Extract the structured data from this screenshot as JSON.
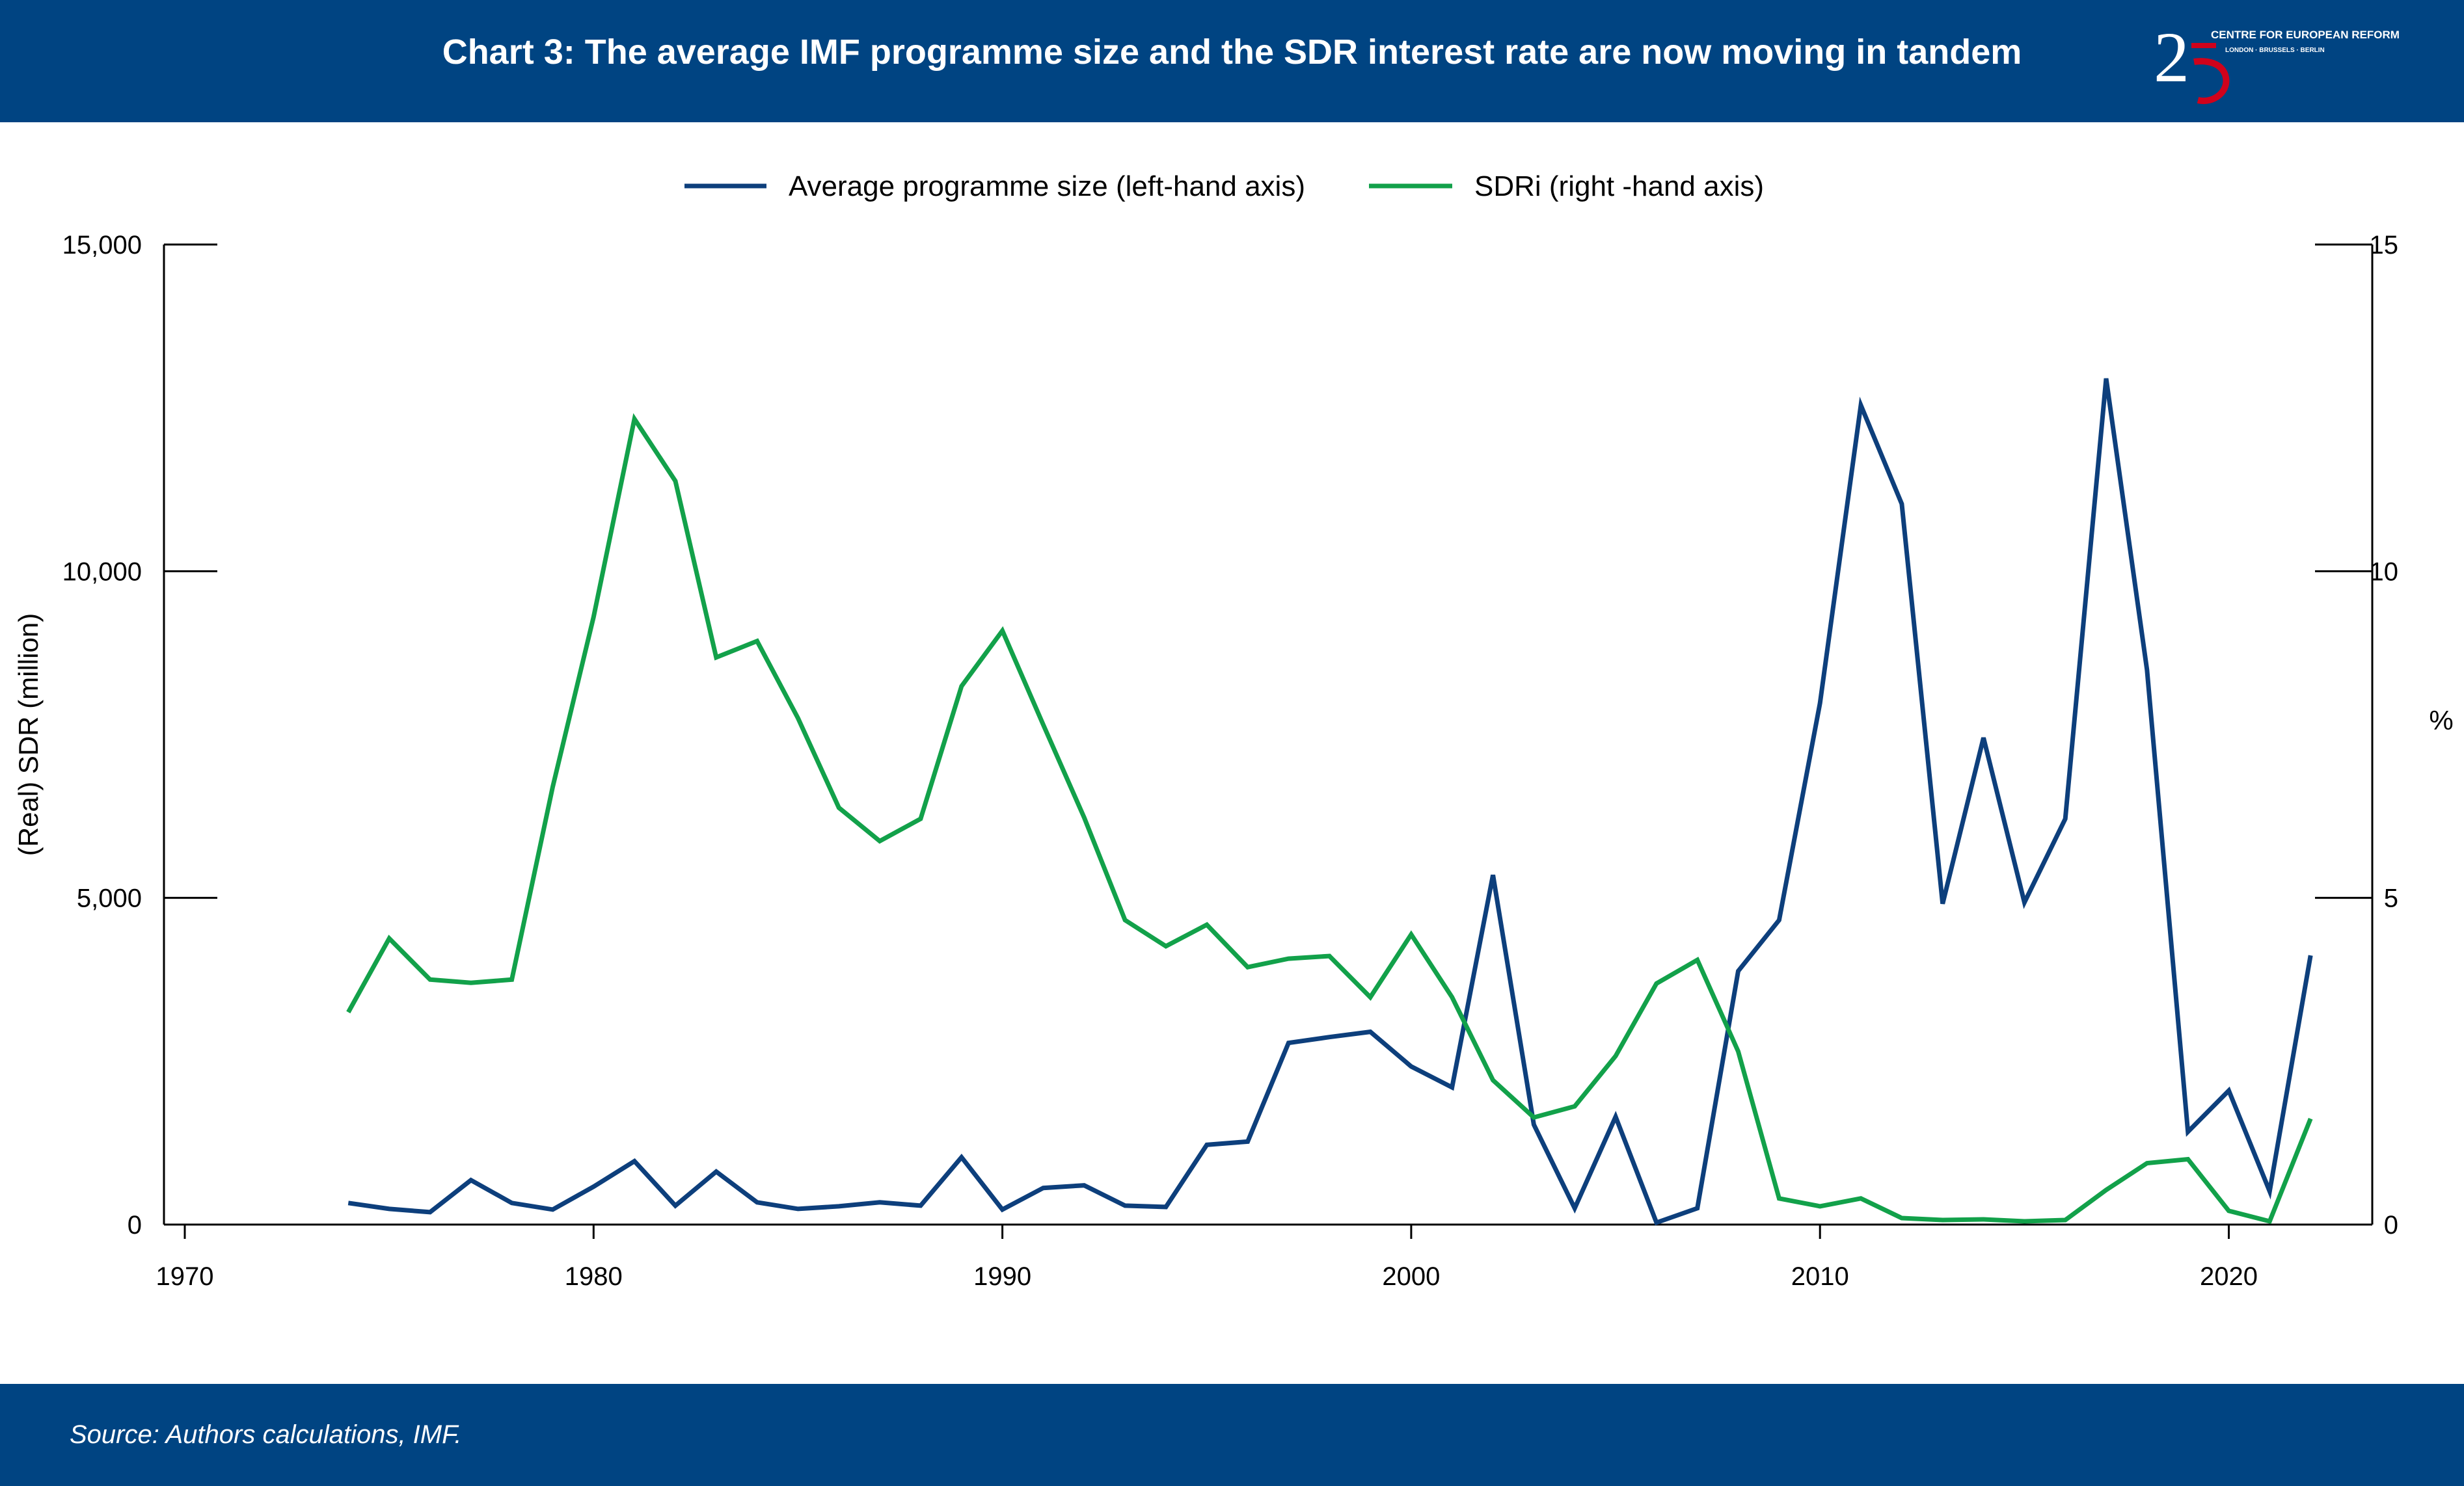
{
  "header": {
    "title": "Chart 3: The average IMF programme size and the SDR interest rate are now moving in tandem",
    "logo": {
      "line1": "CENTRE FOR EUROPEAN REFORM",
      "line2": "LONDON · BRUSSELS · BERLIN"
    }
  },
  "footer": {
    "source": "Source: Authors calculations, IMF."
  },
  "colors": {
    "brand": "#004482",
    "series1": "#0d3f7c",
    "series2": "#12a14a",
    "axis": "#000000"
  },
  "chart_data": {
    "type": "line",
    "title": "",
    "ylabel_left": "(Real) SDR (million)",
    "ylabel_right": "%",
    "xlim": [
      1970,
      2023
    ],
    "ylim_left": [
      0,
      15000
    ],
    "ylim_right": [
      0,
      15
    ],
    "xticks": [
      1970,
      1980,
      1990,
      2000,
      2010,
      2020
    ],
    "xtick_labels": [
      "1970",
      "1980",
      "1990",
      "2000",
      "2010",
      "2020"
    ],
    "yticks_left": [
      0,
      5000,
      10000,
      15000
    ],
    "ytick_labels_left": [
      "0",
      "5,000",
      "10,000",
      "15,000"
    ],
    "yticks_right": [
      0,
      5,
      10,
      15
    ],
    "ytick_labels_right": [
      "0",
      "5",
      "10",
      "15"
    ],
    "legend_position": "top-center",
    "grid": false,
    "series": [
      {
        "name": "Average programme size (left-hand axis)",
        "axis": "left",
        "color": "#0d3f7c",
        "x": [
          1974,
          1975,
          1976,
          1977,
          1978,
          1979,
          1980,
          1981,
          1982,
          1983,
          1984,
          1985,
          1986,
          1987,
          1988,
          1989,
          1990,
          1991,
          1992,
          1993,
          1994,
          1995,
          1996,
          1997,
          1998,
          1999,
          2000,
          2001,
          2002,
          2003,
          2004,
          2005,
          2006,
          2007,
          2008,
          2009,
          2010,
          2011,
          2012,
          2013,
          2014,
          2015,
          2016,
          2017,
          2018,
          2019,
          2020,
          2021,
          2022
        ],
        "y": [
          330,
          240,
          190,
          680,
          330,
          230,
          580,
          970,
          290,
          810,
          340,
          240,
          280,
          340,
          290,
          1030,
          230,
          560,
          600,
          290,
          270,
          1220,
          1270,
          2780,
          2870,
          2950,
          2420,
          2100,
          5350,
          1530,
          250,
          1650,
          30,
          250,
          3880,
          4660,
          7980,
          12540,
          11030,
          4910,
          7450,
          4930,
          6210,
          12950,
          8490,
          1420,
          2050,
          510,
          4120
        ]
      },
      {
        "name": "SDRi (right -hand axis)",
        "axis": "right",
        "color": "#12a14a",
        "x": [
          1974,
          1975,
          1976,
          1977,
          1978,
          1979,
          1980,
          1981,
          1982,
          1983,
          1984,
          1985,
          1986,
          1987,
          1988,
          1989,
          1990,
          1991,
          1992,
          1993,
          1994,
          1995,
          1996,
          1997,
          1998,
          1999,
          2000,
          2001,
          2002,
          2003,
          2004,
          2005,
          2006,
          2007,
          2008,
          2009,
          2010,
          2011,
          2012,
          2013,
          2014,
          2015,
          2016,
          2017,
          2018,
          2019,
          2020,
          2021,
          2022
        ],
        "y": [
          3.25,
          4.38,
          3.75,
          3.7,
          3.75,
          6.7,
          9.3,
          12.33,
          11.38,
          8.68,
          8.93,
          7.75,
          6.38,
          5.87,
          6.21,
          8.24,
          9.09,
          7.65,
          6.23,
          4.66,
          4.26,
          4.59,
          3.94,
          4.07,
          4.11,
          3.48,
          4.44,
          3.48,
          2.21,
          1.64,
          1.81,
          2.58,
          3.69,
          4.05,
          2.65,
          0.4,
          0.28,
          0.4,
          0.1,
          0.07,
          0.08,
          0.05,
          0.07,
          0.53,
          0.94,
          1.0,
          0.21,
          0.05,
          1.62
        ]
      }
    ]
  }
}
